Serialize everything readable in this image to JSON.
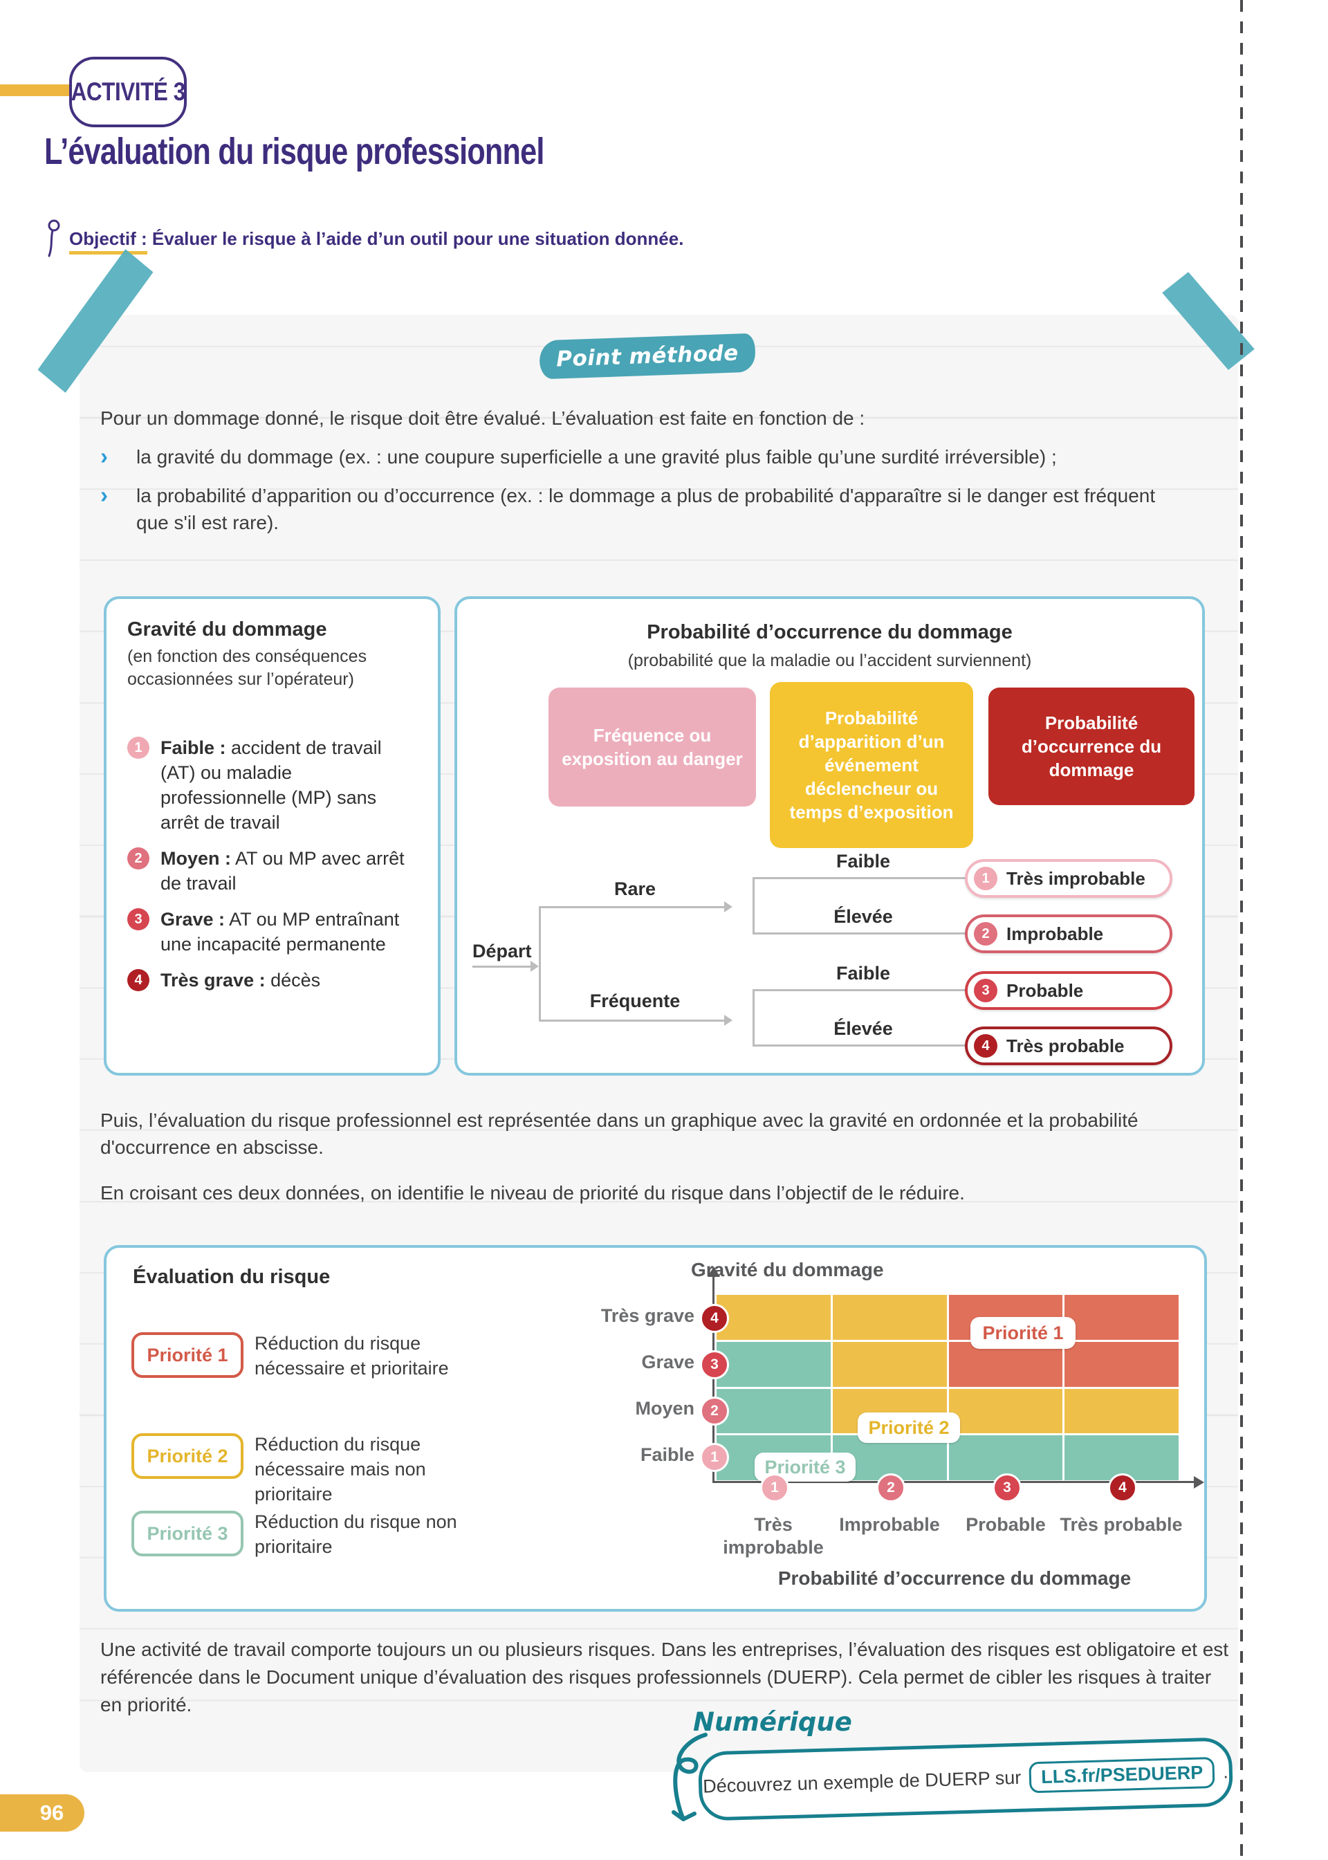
{
  "page": {
    "badge": "ACTIVITÉ 3",
    "title": "L’évaluation du risque professionnel",
    "objective_label": "Objectif :",
    "objective_text": " Évaluer le risque à l’aide d’un outil pour une situation donnée.",
    "number": "96"
  },
  "method": {
    "badge": "Point méthode",
    "intro": "Pour un dommage donné, le risque doit être évalué. L’évaluation est faite en fonction de :",
    "bullet_glyph": "›",
    "bullets": [
      "la gravité du dommage (ex. : une coupure superficielle a une gravité plus faible qu’une surdité irréversible) ;",
      "la probabilité d’apparition ou d’occurrence (ex. : le dommage a plus de probabilité d'apparaître si le danger est fréquent que s'il est rare)."
    ]
  },
  "gravity_box": {
    "title": "Gravité du dommage",
    "subtitle": "(en fonction des conséquences occasionnées sur l’opérateur)",
    "items": [
      {
        "num": "1",
        "label": "Faible :",
        "text": " accident de travail (AT) ou maladie professionnelle (MP) sans arrêt de travail"
      },
      {
        "num": "2",
        "label": "Moyen :",
        "text": " AT ou MP avec arrêt de travail"
      },
      {
        "num": "3",
        "label": "Grave :",
        "text": " AT ou MP entraînant une incapacité permanente"
      },
      {
        "num": "4",
        "label": "Très grave :",
        "text": " décès"
      }
    ]
  },
  "probability_box": {
    "title": "Probabilité d’occurrence du dommage",
    "subtitle": "(probabilité que la maladie ou l’accident surviennent)",
    "stages": [
      "Fréquence ou exposition au danger",
      "Probabilité d’apparition d’un événement déclencheur ou temps d’exposition",
      "Probabilité d’occurrence du dommage"
    ],
    "tree": {
      "start": "Départ",
      "branch_top": "Rare",
      "branch_bottom": "Fréquente",
      "level_labels": [
        "Faible",
        "Élevée",
        "Faible",
        "Élevée"
      ],
      "outcomes": [
        {
          "num": "1",
          "text": "Très improbable"
        },
        {
          "num": "2",
          "text": "Improbable"
        },
        {
          "num": "3",
          "text": "Probable"
        },
        {
          "num": "4",
          "text": "Très probable"
        }
      ]
    }
  },
  "paragraphs": {
    "p1": "Puis, l’évaluation du risque professionnel est représentée dans un graphique avec la gravité en ordonnée et la probabilité d'occurrence en abscisse.",
    "p2": "En croisant ces deux données, on identifie le niveau de priorité du risque dans l’objectif de le réduire.",
    "bottom": "Une activité de travail comporte toujours un ou plusieurs risques. Dans les entreprises, l’évaluation des risques est obligatoire et est référencée dans le Document unique d’évaluation des risques professionnels (DUERP). Cela permet de cibler les risques à traiter en priorité."
  },
  "evaluation": {
    "title": "Évaluation du risque",
    "legend": [
      {
        "pill": "Priorité 1",
        "text": "Réduction du risque nécessaire et prioritaire"
      },
      {
        "pill": "Priorité 2",
        "text": "Réduction du risque nécessaire mais non prioritaire"
      },
      {
        "pill": "Priorité 3",
        "text": "Réduction du risque non prioritaire"
      }
    ]
  },
  "chart_data": {
    "type": "heatmap",
    "title": "Évaluation du risque",
    "ylabel": "Gravité du dommage",
    "xlabel": "Probabilité d’occurrence du dommage",
    "x_categories": [
      {
        "num": "1",
        "label": "Très improbable"
      },
      {
        "num": "2",
        "label": "Improbable"
      },
      {
        "num": "3",
        "label": "Probable"
      },
      {
        "num": "4",
        "label": "Très probable"
      }
    ],
    "y_categories_top_to_bottom": [
      {
        "num": "4",
        "label": "Très grave"
      },
      {
        "num": "3",
        "label": "Grave"
      },
      {
        "num": "2",
        "label": "Moyen"
      },
      {
        "num": "1",
        "label": "Faible"
      }
    ],
    "matrix_rows_top_to_bottom": [
      [
        2,
        2,
        1,
        1
      ],
      [
        3,
        2,
        1,
        1
      ],
      [
        3,
        2,
        2,
        2
      ],
      [
        3,
        3,
        3,
        3
      ]
    ],
    "zone_labels": [
      "Priorité 1",
      "Priorité 2",
      "Priorité 3"
    ],
    "priority_colors": {
      "1": "#e0705a",
      "2": "#eec04a",
      "3": "#82c6b2"
    },
    "legend_meaning": {
      "1": "Réduction du risque nécessaire et prioritaire",
      "2": "Réduction du risque nécessaire mais non prioritaire",
      "3": "Réduction du risque non prioritaire"
    },
    "grid": true,
    "legend_position": "left"
  },
  "numerique": {
    "title": "Numérique",
    "text": "Découvrez un exemple de DUERP sur",
    "link": "LLS.fr/PSEDUERP",
    "suffix": "."
  },
  "colors": {
    "purple": "#3e2d7d",
    "accent_yellow": "#eeb63f",
    "teal": "#49a4b5",
    "numerique_teal": "#177f8e",
    "box_border_blue": "#85c7dd",
    "bullet_blue": "#2a9bd6",
    "level_1": "#f0a8b2",
    "level_2": "#e0717e",
    "level_3": "#d64550",
    "level_4": "#b01f24"
  }
}
